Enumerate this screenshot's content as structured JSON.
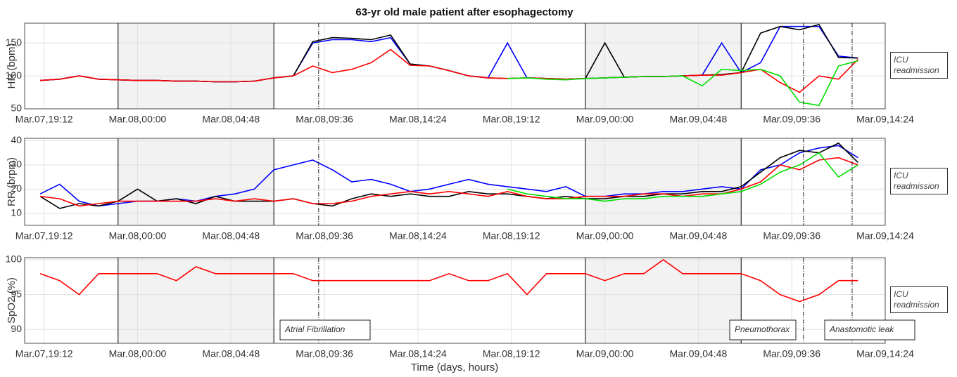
{
  "title": "63-yr old male patient after esophagectomy",
  "xlabel": "Time (days, hours)",
  "chart_data": [
    {
      "type": "line",
      "ylabel": "HR (bpm)",
      "side_note": "ICU readmission",
      "xlim": [
        18.2,
        62.4
      ],
      "ylim": [
        50,
        180
      ],
      "yticks": [
        50,
        100,
        150
      ],
      "xticks": [
        {
          "value": 19.2,
          "label": "Mar.07,19:12"
        },
        {
          "value": 24,
          "label": "Mar.08,00:00"
        },
        {
          "value": 28.8,
          "label": "Mar.08,04:48"
        },
        {
          "value": 33.6,
          "label": "Mar.08,09:36"
        },
        {
          "value": 38.4,
          "label": "Mar.08,14:24"
        },
        {
          "value": 43.2,
          "label": "Mar.08,19:12"
        },
        {
          "value": 48,
          "label": "Mar.09,00:00"
        },
        {
          "value": 52.8,
          "label": "Mar.09,04:48"
        },
        {
          "value": 57.6,
          "label": "Mar.09,09:36"
        },
        {
          "value": 62.4,
          "label": "Mar.09,14:24"
        }
      ],
      "shaded": [
        [
          23,
          31
        ],
        [
          47,
          55
        ]
      ],
      "events": [
        33.3,
        58.2,
        60.7
      ],
      "grid": true,
      "x": [
        19,
        20,
        21,
        22,
        23,
        24,
        25,
        26,
        27,
        28,
        29,
        30,
        31,
        32,
        33,
        34,
        35,
        36,
        37,
        38,
        39,
        40,
        41,
        42,
        43,
        44,
        45,
        46,
        47,
        48,
        49,
        50,
        51,
        52,
        53,
        54,
        55,
        56,
        57,
        58,
        59,
        60,
        61
      ],
      "series": [
        {
          "color": "#0000ff",
          "values": [
            93,
            95,
            100,
            95,
            94,
            93,
            93,
            92,
            92,
            91,
            91,
            92,
            97,
            100,
            150,
            155,
            155,
            152,
            158,
            118,
            115,
            108,
            100,
            97,
            150,
            97,
            96,
            95,
            96,
            97,
            98,
            99,
            99,
            100,
            101,
            150,
            105,
            120,
            175,
            175,
            175,
            130,
            127
          ]
        },
        {
          "color": "#000000",
          "values": [
            93,
            95,
            100,
            95,
            94,
            93,
            93,
            92,
            92,
            91,
            91,
            92,
            97,
            100,
            152,
            158,
            157,
            155,
            162,
            118,
            115,
            108,
            100,
            97,
            96,
            97,
            96,
            95,
            96,
            150,
            98,
            99,
            99,
            100,
            101,
            102,
            105,
            165,
            175,
            170,
            178,
            128,
            127
          ]
        },
        {
          "color": "#ff0000",
          "values": [
            93,
            95,
            100,
            95,
            94,
            93,
            93,
            92,
            92,
            91,
            91,
            92,
            97,
            100,
            115,
            105,
            110,
            120,
            140,
            116,
            115,
            108,
            100,
            97,
            96,
            97,
            96,
            95,
            96,
            97,
            98,
            99,
            99,
            100,
            101,
            101,
            105,
            110,
            90,
            75,
            100,
            95,
            125
          ]
        },
        {
          "color": "#00e000",
          "values": [
            null,
            null,
            null,
            null,
            null,
            null,
            null,
            null,
            null,
            null,
            null,
            null,
            null,
            null,
            null,
            null,
            null,
            null,
            null,
            null,
            null,
            null,
            null,
            null,
            96,
            97,
            95,
            94,
            96,
            97,
            98,
            99,
            99,
            100,
            85,
            110,
            108,
            110,
            100,
            60,
            55,
            115,
            123
          ]
        }
      ]
    },
    {
      "type": "line",
      "ylabel": "RR (brpm)",
      "side_note": "ICU readmission",
      "xlim": [
        18.2,
        62.4
      ],
      "ylim": [
        5,
        41
      ],
      "yticks": [
        10,
        20,
        30,
        40
      ],
      "xticks": [
        {
          "value": 19.2,
          "label": "Mar.07,19:12"
        },
        {
          "value": 24,
          "label": "Mar.08,00:00"
        },
        {
          "value": 28.8,
          "label": "Mar.08,04:48"
        },
        {
          "value": 33.6,
          "label": "Mar.08,09:36"
        },
        {
          "value": 38.4,
          "label": "Mar.08,14:24"
        },
        {
          "value": 43.2,
          "label": "Mar.08,19:12"
        },
        {
          "value": 48,
          "label": "Mar.09,00:00"
        },
        {
          "value": 52.8,
          "label": "Mar.09,04:48"
        },
        {
          "value": 57.6,
          "label": "Mar.09,09:36"
        },
        {
          "value": 62.4,
          "label": "Mar.09,14:24"
        }
      ],
      "shaded": [
        [
          23,
          31
        ],
        [
          47,
          55
        ]
      ],
      "events": [
        33.3,
        58.2,
        60.7
      ],
      "grid": true,
      "x": [
        19,
        20,
        21,
        22,
        23,
        24,
        25,
        26,
        27,
        28,
        29,
        30,
        31,
        32,
        33,
        34,
        35,
        36,
        37,
        38,
        39,
        40,
        41,
        42,
        43,
        44,
        45,
        46,
        47,
        48,
        49,
        50,
        51,
        52,
        53,
        54,
        55,
        56,
        57,
        58,
        59,
        60,
        61
      ],
      "series": [
        {
          "color": "#0000ff",
          "values": [
            18,
            22,
            15,
            13,
            14,
            15,
            15,
            16,
            15,
            17,
            18,
            20,
            28,
            30,
            32,
            28,
            23,
            24,
            22,
            19,
            20,
            22,
            24,
            22,
            21,
            20,
            19,
            21,
            17,
            17,
            18,
            18,
            19,
            19,
            20,
            21,
            20,
            28,
            30,
            35,
            37,
            38,
            33
          ]
        },
        {
          "color": "#000000",
          "values": [
            17,
            12,
            14,
            13,
            15,
            20,
            15,
            16,
            14,
            17,
            15,
            15,
            15,
            16,
            14,
            13,
            16,
            18,
            17,
            18,
            17,
            17,
            19,
            18,
            18,
            17,
            16,
            17,
            16,
            16,
            17,
            17,
            18,
            18,
            19,
            19,
            21,
            27,
            33,
            36,
            35,
            39,
            31
          ]
        },
        {
          "color": "#ff0000",
          "values": [
            17,
            16,
            13,
            14,
            15,
            15,
            15,
            15,
            15,
            16,
            15,
            16,
            15,
            16,
            14,
            14,
            15,
            17,
            18,
            19,
            18,
            19,
            18,
            17,
            19,
            17,
            16,
            16,
            17,
            17,
            17,
            18,
            18,
            17,
            18,
            18,
            20,
            23,
            30,
            28,
            32,
            33,
            30
          ]
        },
        {
          "color": "#00e000",
          "values": [
            null,
            null,
            null,
            null,
            null,
            null,
            null,
            null,
            null,
            null,
            null,
            null,
            null,
            null,
            null,
            null,
            null,
            null,
            null,
            null,
            null,
            null,
            null,
            null,
            20,
            18,
            17,
            16,
            16,
            15,
            16,
            16,
            17,
            17,
            17,
            18,
            19,
            22,
            27,
            30,
            35,
            25,
            30
          ]
        }
      ]
    },
    {
      "type": "line",
      "ylabel": "SpO2 (%)",
      "side_note": "ICU readmission",
      "xlim": [
        18.2,
        62.4
      ],
      "ylim": [
        88,
        100.3
      ],
      "yticks": [
        90,
        95,
        100
      ],
      "xticks": [
        {
          "value": 19.2,
          "label": "Mar.07,19:12"
        },
        {
          "value": 24,
          "label": "Mar.08,00:00"
        },
        {
          "value": 28.8,
          "label": "Mar.08,04:48"
        },
        {
          "value": 33.6,
          "label": "Mar.08,09:36"
        },
        {
          "value": 38.4,
          "label": "Mar.08,14:24"
        },
        {
          "value": 43.2,
          "label": "Mar.08,19:12"
        },
        {
          "value": 48,
          "label": "Mar.09,00:00"
        },
        {
          "value": 52.8,
          "label": "Mar.09,04:48"
        },
        {
          "value": 57.6,
          "label": "Mar.09,09:36"
        },
        {
          "value": 62.4,
          "label": "Mar.09,14:24"
        }
      ],
      "shaded": [
        [
          23,
          31
        ],
        [
          47,
          55
        ]
      ],
      "events": [
        33.3,
        58.2,
        60.7
      ],
      "grid": true,
      "annotations": [
        "Atrial Fibrillation",
        "Pneumothorax",
        "Anastomotic leak"
      ],
      "x": [
        19,
        20,
        21,
        22,
        23,
        24,
        25,
        26,
        27,
        28,
        29,
        30,
        31,
        32,
        33,
        34,
        35,
        36,
        37,
        38,
        39,
        40,
        41,
        42,
        43,
        44,
        45,
        46,
        47,
        48,
        49,
        50,
        51,
        52,
        53,
        54,
        55,
        56,
        57,
        58,
        59,
        60,
        61
      ],
      "series": [
        {
          "color": "#ff0000",
          "values": [
            98,
            97,
            95,
            98,
            98,
            98,
            98,
            97,
            99,
            98,
            98,
            98,
            98,
            98,
            97,
            97,
            97,
            97,
            97,
            97,
            97,
            98,
            97,
            97,
            98,
            95,
            98,
            98,
            98,
            97,
            98,
            98,
            100,
            98,
            98,
            98,
            98,
            97,
            95,
            94,
            95,
            97,
            97
          ]
        }
      ]
    }
  ]
}
